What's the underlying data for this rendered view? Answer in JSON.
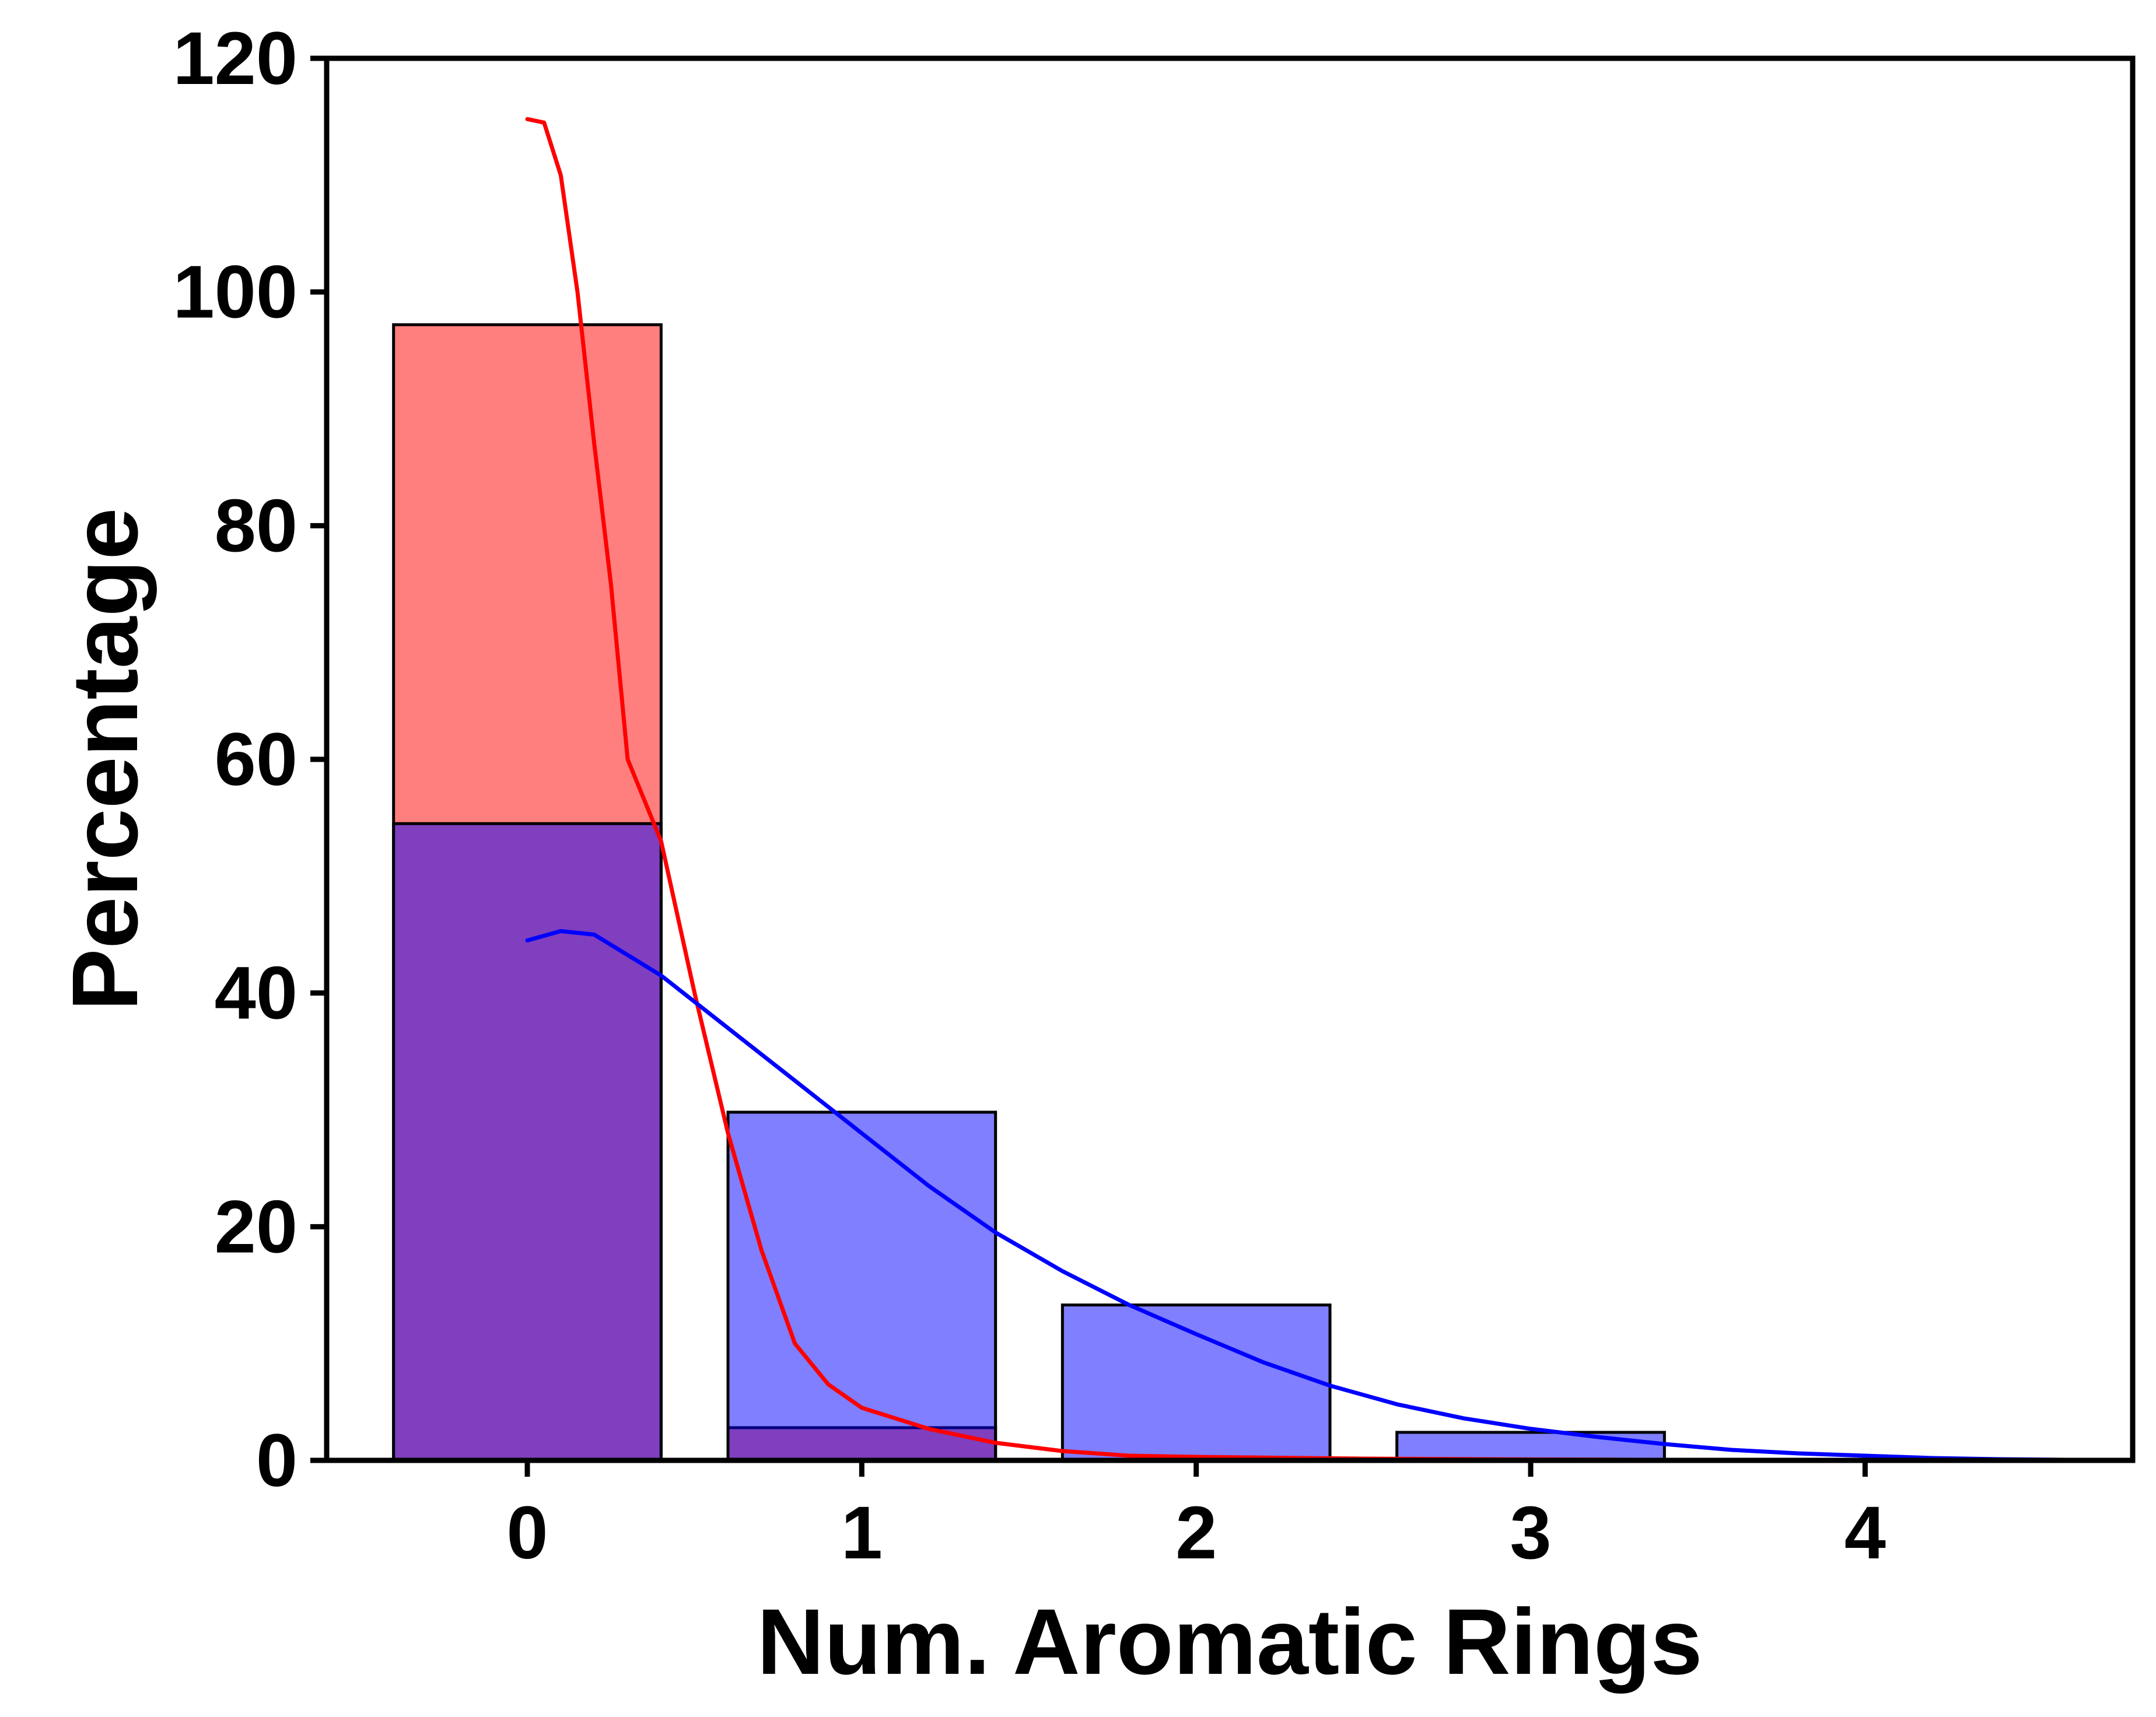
{
  "chart_data": {
    "type": "bar",
    "title": "",
    "xlabel": "Num. Aromatic Rings",
    "ylabel": "Percentage",
    "xlim": [
      -0.6,
      4.8
    ],
    "ylim": [
      0,
      120
    ],
    "xticks": [
      0,
      1,
      2,
      3,
      4
    ],
    "yticks": [
      0,
      20,
      40,
      60,
      80,
      100,
      120
    ],
    "grid": false,
    "legend": "none",
    "bar_width": 0.8,
    "categories": [
      0,
      1,
      2,
      3
    ],
    "series": [
      {
        "color": "#ff0000",
        "fill_opacity": 0.5,
        "values": [
          97.2,
          2.8,
          0,
          0
        ],
        "kde": {
          "x": [
            0,
            0.05,
            0.1,
            0.15,
            0.2,
            0.25,
            0.3,
            0.4,
            0.5,
            0.6,
            0.7,
            0.8,
            0.9,
            1.0,
            1.2,
            1.4,
            1.6,
            1.8,
            2.0,
            2.5,
            3.0,
            3.5,
            4.0,
            4.5
          ],
          "y": [
            114.8,
            114.5,
            110,
            100,
            87,
            75,
            60,
            53,
            40,
            28,
            18,
            10,
            6.5,
            4.5,
            2.7,
            1.5,
            0.8,
            0.4,
            0.3,
            0.15,
            0.08,
            0.04,
            0.02,
            0
          ]
        }
      },
      {
        "color": "#0000ff",
        "fill_opacity": 0.5,
        "values": [
          54.5,
          29.8,
          13.3,
          2.4
        ],
        "kde": {
          "x": [
            0,
            0.1,
            0.2,
            0.4,
            0.6,
            0.8,
            1.0,
            1.2,
            1.4,
            1.6,
            1.8,
            2.0,
            2.2,
            2.4,
            2.6,
            2.8,
            3.0,
            3.2,
            3.4,
            3.6,
            3.8,
            4.0,
            4.2,
            4.4,
            4.6
          ],
          "y": [
            44.5,
            45.3,
            45.0,
            41.5,
            37.0,
            32.5,
            28.0,
            23.5,
            19.5,
            16.2,
            13.3,
            10.8,
            8.4,
            6.4,
            4.8,
            3.6,
            2.7,
            2.0,
            1.4,
            0.9,
            0.6,
            0.4,
            0.2,
            0.1,
            0.05
          ]
        }
      }
    ]
  }
}
